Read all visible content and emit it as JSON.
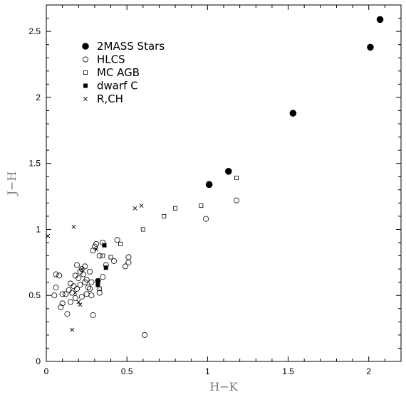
{
  "chart_data": {
    "type": "scatter",
    "xlabel": "H−K",
    "ylabel": "J−H",
    "xlim": [
      0,
      2.2
    ],
    "ylim": [
      0,
      2.7
    ],
    "xticks": [
      0,
      0.5,
      1,
      1.5,
      2
    ],
    "xtick_labels": [
      "0",
      "0.5",
      "1",
      "1.5",
      "2"
    ],
    "yticks": [
      0,
      0.5,
      1,
      1.5,
      2,
      2.5
    ],
    "ytick_labels": [
      "0",
      "0.5",
      "1",
      "1.5",
      "2",
      "2.5"
    ],
    "grid": false,
    "legend_placement": "top-left",
    "series": [
      {
        "name": "2MASS Stars",
        "marker": "filled-circle",
        "points": [
          [
            1.01,
            1.34
          ],
          [
            1.13,
            1.44
          ],
          [
            1.53,
            1.88
          ],
          [
            2.01,
            2.38
          ],
          [
            2.07,
            2.59
          ]
        ]
      },
      {
        "name": "HLCS",
        "marker": "open-circle",
        "points": [
          [
            0.05,
            0.5
          ],
          [
            0.06,
            0.56
          ],
          [
            0.06,
            0.66
          ],
          [
            0.08,
            0.65
          ],
          [
            0.09,
            0.41
          ],
          [
            0.1,
            0.44
          ],
          [
            0.1,
            0.51
          ],
          [
            0.12,
            0.51
          ],
          [
            0.13,
            0.36
          ],
          [
            0.14,
            0.54
          ],
          [
            0.15,
            0.45
          ],
          [
            0.15,
            0.59
          ],
          [
            0.16,
            0.52
          ],
          [
            0.17,
            0.57
          ],
          [
            0.18,
            0.65
          ],
          [
            0.18,
            0.48
          ],
          [
            0.19,
            0.55
          ],
          [
            0.19,
            0.73
          ],
          [
            0.2,
            0.63
          ],
          [
            0.21,
            0.58
          ],
          [
            0.21,
            0.68
          ],
          [
            0.22,
            0.7
          ],
          [
            0.22,
            0.49
          ],
          [
            0.23,
            0.66
          ],
          [
            0.24,
            0.6
          ],
          [
            0.24,
            0.72
          ],
          [
            0.25,
            0.62
          ],
          [
            0.25,
            0.51
          ],
          [
            0.26,
            0.56
          ],
          [
            0.27,
            0.68
          ],
          [
            0.27,
            0.55
          ],
          [
            0.28,
            0.6
          ],
          [
            0.28,
            0.5
          ],
          [
            0.29,
            0.84
          ],
          [
            0.29,
            0.35
          ],
          [
            0.3,
            0.87
          ],
          [
            0.31,
            0.89
          ],
          [
            0.32,
            0.61
          ],
          [
            0.33,
            0.8
          ],
          [
            0.33,
            0.52
          ],
          [
            0.35,
            0.9
          ],
          [
            0.35,
            0.64
          ],
          [
            0.37,
            0.73
          ],
          [
            0.42,
            0.76
          ],
          [
            0.44,
            0.92
          ],
          [
            0.49,
            0.72
          ],
          [
            0.51,
            0.75
          ],
          [
            0.51,
            0.79
          ],
          [
            0.61,
            0.2
          ],
          [
            0.99,
            1.08
          ],
          [
            1.18,
            1.22
          ]
        ]
      },
      {
        "name": "MC AGB",
        "marker": "open-square",
        "points": [
          [
            0.33,
            0.55
          ],
          [
            0.35,
            0.8
          ],
          [
            0.4,
            0.79
          ],
          [
            0.46,
            0.89
          ],
          [
            0.6,
            1.0
          ],
          [
            0.73,
            1.1
          ],
          [
            0.8,
            1.16
          ],
          [
            0.96,
            1.18
          ],
          [
            1.18,
            1.39
          ]
        ]
      },
      {
        "name": "dwarf C",
        "marker": "filled-square",
        "points": [
          [
            0.32,
            0.58
          ],
          [
            0.32,
            0.61
          ],
          [
            0.36,
            0.88
          ],
          [
            0.37,
            0.71
          ]
        ]
      },
      {
        "name": "R,CH",
        "marker": "cross",
        "points": [
          [
            0.01,
            0.95
          ],
          [
            0.16,
            0.24
          ],
          [
            0.17,
            1.02
          ],
          [
            0.18,
            0.52
          ],
          [
            0.2,
            0.45
          ],
          [
            0.21,
            0.43
          ],
          [
            0.22,
            0.7
          ],
          [
            0.31,
            0.85
          ],
          [
            0.55,
            1.16
          ],
          [
            0.59,
            1.18
          ]
        ]
      }
    ]
  }
}
